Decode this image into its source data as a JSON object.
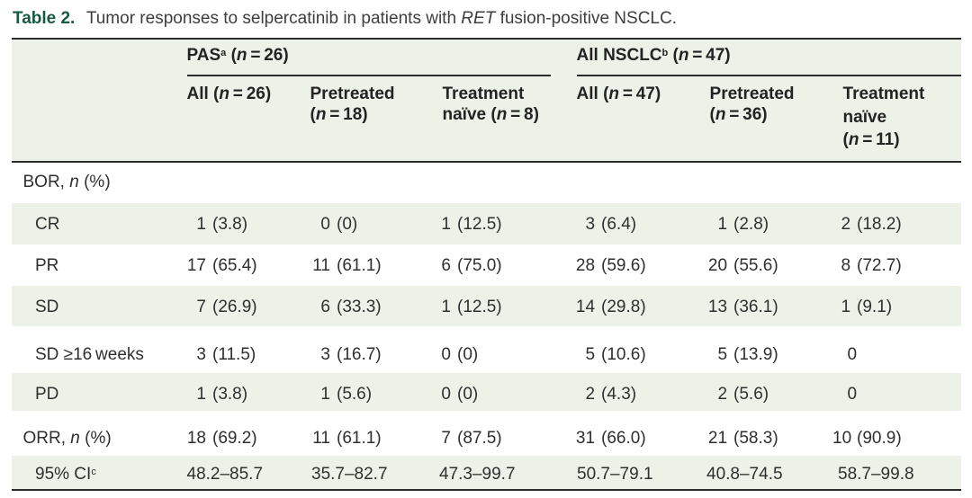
{
  "colors": {
    "accent_green": "#175a40",
    "band_green": "#ecf2e8",
    "rule": "#2b2b2b",
    "body_text": "#2f2f2f",
    "caption_text": "#3e3e3e"
  },
  "title": {
    "number": "Table 2.",
    "caption_html": "Tumor responses to selpercatinib in patients with <i>RET</i> fusion-positive NSCLC.",
    "caption_text": "Tumor responses to selpercatinib in patients with RET fusion-positive NSCLC."
  },
  "table": {
    "column_groups": [
      {
        "label_html": "PAS<sup>a</sup> (<i>n</i> = 26)",
        "label_text": "PASa (n = 26)",
        "columns": 3
      },
      {
        "label_html": "All NSCLC<sup>b</sup> (<i>n</i> = 47)",
        "label_text": "All NSCLCb (n = 47)",
        "columns": 3
      }
    ],
    "columns": [
      {
        "label_html": "All (<i>n</i> = 26)",
        "label_text": "All (n = 26)"
      },
      {
        "label_html": "Pretreated<br>(<i>n</i> = 18)",
        "label_text": "Pretreated (n = 18)"
      },
      {
        "label_html": "Treatment<br>naïve (<i>n</i> = 8)",
        "label_text": "Treatment naive (n = 8)"
      },
      {
        "label_html": "All (<i>n</i> = 47)",
        "label_text": "All (n = 47)"
      },
      {
        "label_html": "Pretreated<br>(<i>n</i> = 36)",
        "label_text": "Pretreated (n = 36)"
      },
      {
        "label_html": "Treatment<br>naïve<br>(<i>n</i> = 11)",
        "label_text": "Treatment naive (n = 11)"
      }
    ],
    "rows": [
      {
        "label_html": "BOR, <i>n</i> (%)",
        "label_text": "BOR, n (%)",
        "indent": false,
        "cells": [
          "",
          "",
          "",
          "",
          "",
          ""
        ]
      },
      {
        "label_html": "CR",
        "label_text": "CR",
        "indent": true,
        "cells": [
          {
            "n": "1",
            "pct": "(3.8)"
          },
          {
            "n": "0",
            "pct": "(0)"
          },
          {
            "n": "1",
            "pct": "(12.5)"
          },
          {
            "n": "3",
            "pct": "(6.4)"
          },
          {
            "n": "1",
            "pct": "(2.8)"
          },
          {
            "n": "2",
            "pct": "(18.2)"
          }
        ]
      },
      {
        "label_html": "PR",
        "label_text": "PR",
        "indent": true,
        "cells": [
          {
            "n": "17",
            "pct": "(65.4)"
          },
          {
            "n": "11",
            "pct": "(61.1)"
          },
          {
            "n": "6",
            "pct": "(75.0)"
          },
          {
            "n": "28",
            "pct": "(59.6)"
          },
          {
            "n": "20",
            "pct": "(55.6)"
          },
          {
            "n": "8",
            "pct": "(72.7)"
          }
        ]
      },
      {
        "label_html": "SD",
        "label_text": "SD",
        "indent": true,
        "cells": [
          {
            "n": "7",
            "pct": "(26.9)"
          },
          {
            "n": "6",
            "pct": "(33.3)"
          },
          {
            "n": "1",
            "pct": "(12.5)"
          },
          {
            "n": "14",
            "pct": "(29.8)"
          },
          {
            "n": "13",
            "pct": "(36.1)"
          },
          {
            "n": "1",
            "pct": "(9.1)"
          }
        ]
      },
      {
        "label_html": "SD ≥16 weeks",
        "label_text": "SD ≥16 weeks",
        "indent": true,
        "cells": [
          {
            "n": "3",
            "pct": "(11.5)"
          },
          {
            "n": "3",
            "pct": "(16.7)"
          },
          {
            "n": "0",
            "pct": "(0)"
          },
          {
            "n": "5",
            "pct": "(10.6)"
          },
          {
            "n": "5",
            "pct": "(13.9)"
          },
          {
            "n": "0",
            "pct": ""
          }
        ]
      },
      {
        "label_html": "PD",
        "label_text": "PD",
        "indent": true,
        "cells": [
          {
            "n": "1",
            "pct": "(3.8)"
          },
          {
            "n": "1",
            "pct": "(5.6)"
          },
          {
            "n": "0",
            "pct": "(0)"
          },
          {
            "n": "2",
            "pct": "(4.3)"
          },
          {
            "n": "2",
            "pct": "(5.6)"
          },
          {
            "n": "0",
            "pct": ""
          }
        ]
      },
      {
        "label_html": "ORR, <i>n</i> (%)",
        "label_text": "ORR, n (%)",
        "indent": false,
        "cells": [
          {
            "n": "18",
            "pct": "(69.2)"
          },
          {
            "n": "11",
            "pct": "(61.1)"
          },
          {
            "n": "7",
            "pct": "(87.5)"
          },
          {
            "n": "31",
            "pct": "(66.0)"
          },
          {
            "n": "21",
            "pct": "(58.3)"
          },
          {
            "n": "10",
            "pct": "(90.9)"
          }
        ]
      },
      {
        "label_html": "95% CI<sup>c</sup>",
        "label_text": "95% CIc",
        "indent": true,
        "cells": [
          "48.2–85.7",
          "35.7–82.7",
          "47.3–99.7",
          "50.7–79.1",
          "40.8–74.5",
          "58.7–99.8"
        ]
      }
    ]
  }
}
